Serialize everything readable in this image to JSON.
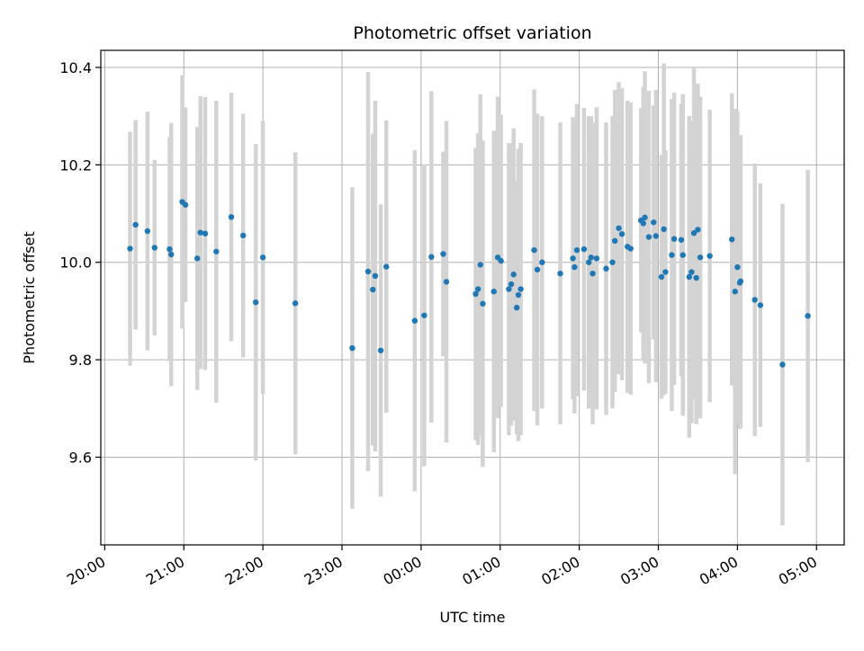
{
  "chart_data": {
    "type": "scatter",
    "title": "Photometric offset variation",
    "xlabel": "UTC time",
    "ylabel": "Photometric offset",
    "x_ticks": [
      "20:00",
      "21:00",
      "22:00",
      "23:00",
      "00:00",
      "01:00",
      "02:00",
      "03:00",
      "04:00",
      "05:00"
    ],
    "y_ticks": [
      "9.6",
      "9.8",
      "10.0",
      "10.2",
      "10.4"
    ],
    "x_range_hours": [
      19.95,
      29.35
    ],
    "ylim": [
      9.42,
      10.435
    ],
    "grid": true,
    "colors": {
      "point": "#1f77b4",
      "errorbar": "#d3d3d3",
      "grid": "#b0b0b0"
    },
    "series": [
      {
        "values": [
          [
            20.32,
            10.028,
            0.24
          ],
          [
            20.39,
            10.077,
            0.215
          ],
          [
            20.54,
            10.064,
            0.245
          ],
          [
            20.63,
            10.03,
            0.18
          ],
          [
            20.82,
            10.027,
            0.23
          ],
          [
            20.84,
            10.016,
            0.27
          ],
          [
            20.98,
            10.124,
            0.26
          ],
          [
            21.02,
            10.118,
            0.2
          ],
          [
            21.17,
            10.008,
            0.27
          ],
          [
            21.21,
            10.061,
            0.28
          ],
          [
            21.27,
            10.059,
            0.28
          ],
          [
            21.41,
            10.022,
            0.31
          ],
          [
            21.6,
            10.093,
            0.255
          ],
          [
            21.75,
            10.055,
            0.25
          ],
          [
            21.91,
            9.918,
            0.325
          ],
          [
            22.0,
            10.01,
            0.28
          ],
          [
            22.41,
            9.916,
            0.31
          ],
          [
            23.13,
            9.824,
            0.33
          ],
          [
            23.33,
            9.981,
            0.41
          ],
          [
            23.39,
            9.944,
            0.32
          ],
          [
            23.42,
            9.972,
            0.36
          ],
          [
            23.49,
            9.819,
            0.3
          ],
          [
            23.56,
            9.991,
            0.3
          ],
          [
            23.92,
            9.88,
            0.35
          ],
          [
            24.04,
            9.891,
            0.31
          ],
          [
            24.13,
            10.011,
            0.34
          ],
          [
            24.28,
            10.017,
            0.21
          ],
          [
            24.32,
            9.96,
            0.33
          ],
          [
            24.69,
            9.935,
            0.3
          ],
          [
            24.72,
            9.945,
            0.32
          ],
          [
            24.75,
            9.995,
            0.35
          ],
          [
            24.78,
            9.915,
            0.335
          ],
          [
            24.92,
            9.94,
            0.33
          ],
          [
            24.97,
            10.01,
            0.33
          ],
          [
            25.01,
            10.003,
            0.3
          ],
          [
            25.11,
            9.945,
            0.3
          ],
          [
            25.14,
            9.955,
            0.29
          ],
          [
            25.17,
            9.975,
            0.3
          ],
          [
            25.21,
            9.907,
            0.26
          ],
          [
            25.23,
            9.933,
            0.3
          ],
          [
            25.26,
            9.945,
            0.3
          ],
          [
            25.43,
            10.025,
            0.33
          ],
          [
            25.47,
            9.985,
            0.32
          ],
          [
            25.53,
            10.0,
            0.3
          ],
          [
            25.76,
            9.977,
            0.31
          ],
          [
            25.92,
            10.008,
            0.29
          ],
          [
            25.94,
            9.99,
            0.3
          ],
          [
            25.97,
            10.025,
            0.3
          ],
          [
            26.06,
            10.027,
            0.29
          ],
          [
            26.12,
            10.0,
            0.3
          ],
          [
            26.15,
            10.01,
            0.29
          ],
          [
            26.17,
            9.977,
            0.31
          ],
          [
            26.22,
            10.008,
            0.31
          ],
          [
            26.34,
            9.987,
            0.3
          ],
          [
            26.42,
            10.0,
            0.3
          ],
          [
            26.45,
            10.044,
            0.31
          ],
          [
            26.5,
            10.07,
            0.3
          ],
          [
            26.54,
            10.058,
            0.3
          ],
          [
            26.61,
            10.032,
            0.3
          ],
          [
            26.65,
            10.028,
            0.3
          ],
          [
            26.78,
            10.086,
            0.23
          ],
          [
            26.81,
            10.08,
            0.28
          ],
          [
            26.83,
            10.092,
            0.3
          ],
          [
            26.88,
            10.052,
            0.3
          ],
          [
            26.94,
            10.082,
            0.24
          ],
          [
            26.97,
            10.054,
            0.3
          ],
          [
            27.04,
            9.97,
            0.25
          ],
          [
            27.07,
            10.068,
            0.34
          ],
          [
            27.09,
            9.98,
            0.25
          ],
          [
            27.17,
            10.015,
            0.32
          ],
          [
            27.2,
            10.048,
            0.3
          ],
          [
            27.29,
            10.046,
            0.28
          ],
          [
            27.31,
            10.015,
            0.33
          ],
          [
            27.39,
            9.97,
            0.33
          ],
          [
            27.42,
            9.98,
            0.31
          ],
          [
            27.45,
            10.06,
            0.34
          ],
          [
            27.48,
            9.968,
            0.3
          ],
          [
            27.5,
            10.067,
            0.3
          ],
          [
            27.53,
            10.01,
            0.33
          ],
          [
            27.65,
            10.013,
            0.3
          ],
          [
            27.93,
            10.047,
            0.3
          ],
          [
            27.97,
            9.94,
            0.375
          ],
          [
            28.0,
            9.99,
            0.32
          ],
          [
            28.03,
            9.958,
            0.3
          ],
          [
            28.04,
            9.961,
            0.3
          ],
          [
            28.22,
            9.923,
            0.28
          ],
          [
            28.29,
            9.912,
            0.25
          ],
          [
            28.57,
            9.79,
            0.33
          ],
          [
            28.89,
            9.89,
            0.3
          ]
        ]
      }
    ]
  }
}
